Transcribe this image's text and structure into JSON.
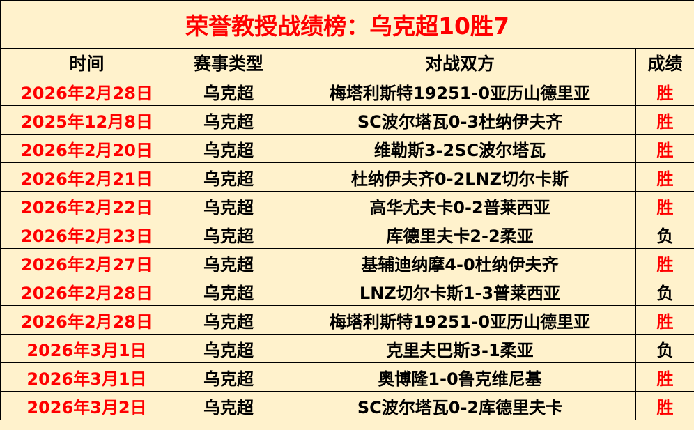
{
  "title": "荣誉教授战绩榜：乌克超10胜7",
  "headers": [
    "时间",
    "赛事类型",
    "对战双方",
    "成绩"
  ],
  "colors": {
    "background": "#FFF2CC",
    "accent_red": "#FF0000",
    "text": "#000000"
  },
  "rows": [
    {
      "date": "2026年2月28日",
      "league": "乌克超",
      "match": "梅塔利斯特19251-0亚历山德里亚",
      "result": "胜"
    },
    {
      "date": "2025年12月8日",
      "league": "乌克超",
      "match": "SC波尔塔瓦0-3杜纳伊夫齐",
      "result": "胜"
    },
    {
      "date": "2026年2月20日",
      "league": "乌克超",
      "match": "维勒斯3-2SC波尔塔瓦",
      "result": "胜"
    },
    {
      "date": "2026年2月21日",
      "league": "乌克超",
      "match": "杜纳伊夫齐0-2LNZ切尔卡斯",
      "result": "胜"
    },
    {
      "date": "2026年2月22日",
      "league": "乌克超",
      "match": "高华尤夫卡0-2普莱西亚",
      "result": "胜"
    },
    {
      "date": "2026年2月23日",
      "league": "乌克超",
      "match": "库德里夫卡2-2柔亚",
      "result": "负"
    },
    {
      "date": "2026年2月27日",
      "league": "乌克超",
      "match": "基辅迪纳摩4-0杜纳伊夫齐",
      "result": "胜"
    },
    {
      "date": "2026年2月28日",
      "league": "乌克超",
      "match": "LNZ切尔卡斯1-3普莱西亚",
      "result": "负"
    },
    {
      "date": "2026年2月28日",
      "league": "乌克超",
      "match": "梅塔利斯特19251-0亚历山德里亚",
      "result": "胜"
    },
    {
      "date": "2026年3月1日",
      "league": "乌克超",
      "match": "克里夫巴斯3-1柔亚",
      "result": "负"
    },
    {
      "date": "2026年3月1日",
      "league": "乌克超",
      "match": "奥博隆1-0鲁克维尼基",
      "result": "胜"
    },
    {
      "date": "2026年3月2日",
      "league": "乌克超",
      "match": "SC波尔塔瓦0-2库德里夫卡",
      "result": "胜"
    }
  ]
}
